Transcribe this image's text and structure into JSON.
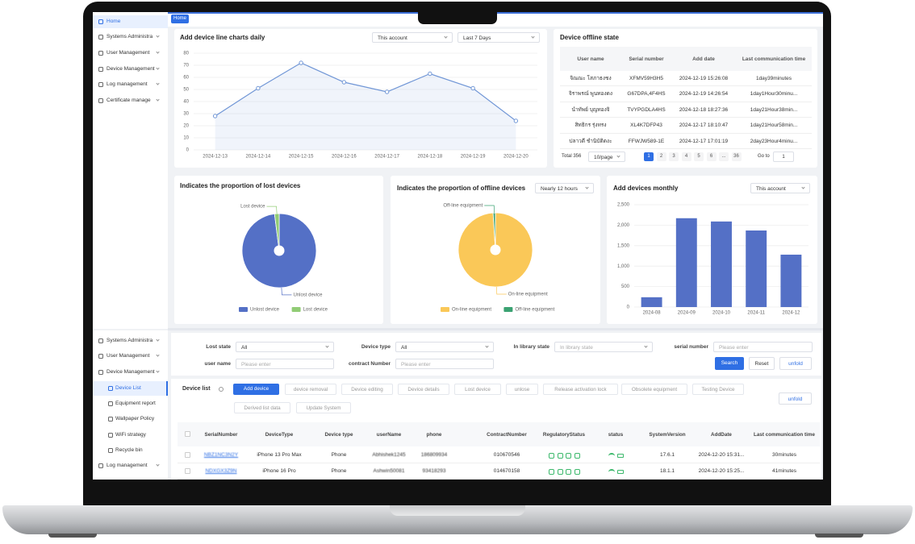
{
  "sidebar_top": {
    "items": [
      "Home",
      "Systems Administra",
      "User Management",
      "Device Management",
      "Log management",
      "Certificate manage"
    ]
  },
  "tabs": [
    "Home"
  ],
  "line_chart": {
    "type": "line",
    "title": "Add device line charts daily",
    "filters": [
      "This account",
      "Last 7 Days"
    ],
    "categories": [
      "2024-12-13",
      "2024-12-14",
      "2024-12-15",
      "2024-12-16",
      "2024-12-17",
      "2024-12-18",
      "2024-12-19",
      "2024-12-20"
    ],
    "values": [
      28,
      51,
      72,
      56,
      48,
      63,
      51,
      24
    ],
    "color": "#7096d6",
    "ylim": [
      0,
      80
    ],
    "yticks": [
      0,
      10,
      20,
      30,
      40,
      50,
      60,
      70,
      80
    ],
    "grid": true
  },
  "offline_table": {
    "title": "Device offline state",
    "headers": [
      "User name",
      "Serial number",
      "Add date",
      "Last communication time"
    ],
    "rows": [
      [
        "จิณณะ โสภาธงชง",
        "XFMV59H3H5",
        "2024-12-19 15:26:08",
        "1day39minutes"
      ],
      [
        "จิราพรณ์ พูนทองดง",
        "G67DPA,4F4HS",
        "2024-12-19 14:26:54",
        "1day1Hour30minu..."
      ],
      [
        "นำทัพย์ บุญทองจิ",
        "TVYPGDLA4HS",
        "2024-12-18 18:27:36",
        "1day21Hour38min..."
      ],
      [
        "สิทธิกร รุ่งทรง",
        "XL4K7DFP43",
        "2024-12-17 18:10:47",
        "1day21Hour58min..."
      ],
      [
        "ปลาวดี ชำนิบัติดงะ",
        "FFWJW589-1E",
        "2024-12-17 17:01:19",
        "2day23Hour4minu..."
      ]
    ],
    "pagination": {
      "total": "Total 356",
      "page_size": "10/page",
      "pages": [
        "1",
        "2",
        "3",
        "4",
        "5",
        "6",
        "...",
        "36"
      ],
      "goto": "Go to",
      "goto_value": "1"
    }
  },
  "lost_pie": {
    "type": "pie",
    "title": "Indicates the proportion of lost devices",
    "categories": [
      "Unlost device",
      "Lost device"
    ],
    "values": [
      98,
      2
    ],
    "colors": [
      "#5470c6",
      "#91cc75"
    ]
  },
  "offline_pie": {
    "type": "pie",
    "title": "Indicates the proportion of offline devices",
    "filter": "Nearly 12 hours",
    "categories": [
      "On-line equipment",
      "Off-line equipment"
    ],
    "values": [
      99,
      1
    ],
    "colors": [
      "#fac858",
      "#3ba272"
    ]
  },
  "monthly_bar": {
    "type": "bar",
    "title": "Add devices monthly",
    "filter": "This account",
    "categories": [
      "2024-08",
      "2024-09",
      "2024-10",
      "2024-11",
      "2024-12"
    ],
    "values": [
      240,
      2170,
      2090,
      1870,
      1280
    ],
    "color": "#5470c6",
    "ylim": [
      0,
      2500
    ],
    "yticks": [
      0,
      500,
      {
        "value": 1000,
        "label": "1,000"
      },
      {
        "value": 1500,
        "label": "1,500"
      },
      {
        "value": 2000,
        "label": "2,000"
      },
      {
        "value": 2500,
        "label": "2,500"
      }
    ],
    "grid": true
  },
  "sidebar_bottom": {
    "items": [
      "Systems Administra",
      "User Management",
      "Device Management",
      "Device List",
      "Equipment report",
      "Wallpaper Policy",
      "WiFi strategy",
      "Recycle bin",
      "Log management"
    ]
  },
  "filters": {
    "fields": [
      {
        "label": "Lost state",
        "value": "All",
        "dropdown": true
      },
      {
        "label": "Device type",
        "value": "All",
        "dropdown": true
      },
      {
        "label": "In library state",
        "placeholder": "In library state",
        "dropdown": true
      },
      {
        "label": "serial number",
        "placeholder": "Please enter"
      },
      {
        "label": "user name",
        "placeholder": "Please enter"
      },
      {
        "label": "contract Number",
        "placeholder": "Please enter"
      }
    ],
    "buttons": [
      "Search",
      "Reset",
      "unfold"
    ]
  },
  "device_list": {
    "title": "Device list",
    "actions": [
      "Add device",
      "device removal",
      "Device editing",
      "Device details",
      "Lost device",
      "unlose",
      "Release activation lock",
      "Obsolete equipment",
      "Testing Device",
      "Derived list data",
      "Update System"
    ],
    "unfold": "unfold",
    "headers": [
      "SerialNumber",
      "DeviceType",
      "Device type",
      "userName",
      "phone",
      "ContractNumber",
      "RegulatoryStatus",
      "status",
      "SystemVersion",
      "AddDate",
      "Last communication time"
    ],
    "rows": [
      {
        "serial": "NBZ1NC3N2Y",
        "model": "iPhone 13 Pro Max",
        "kind": "Phone",
        "user": "Abhishek1245",
        "phone": "186809934",
        "contract": "010670546",
        "version": "17.6.1",
        "added": "2024-12-20 15:31...",
        "last_comm": "30minutes"
      },
      {
        "serial": "NDXGX3Z9N",
        "model": "iPhone 16 Pro",
        "kind": "Phone",
        "user": "Ashwin50081",
        "phone": "93418293",
        "contract": "014670158",
        "version": "18.1.1",
        "added": "2024-12-20 15:25...",
        "last_comm": "41minutes"
      }
    ]
  }
}
